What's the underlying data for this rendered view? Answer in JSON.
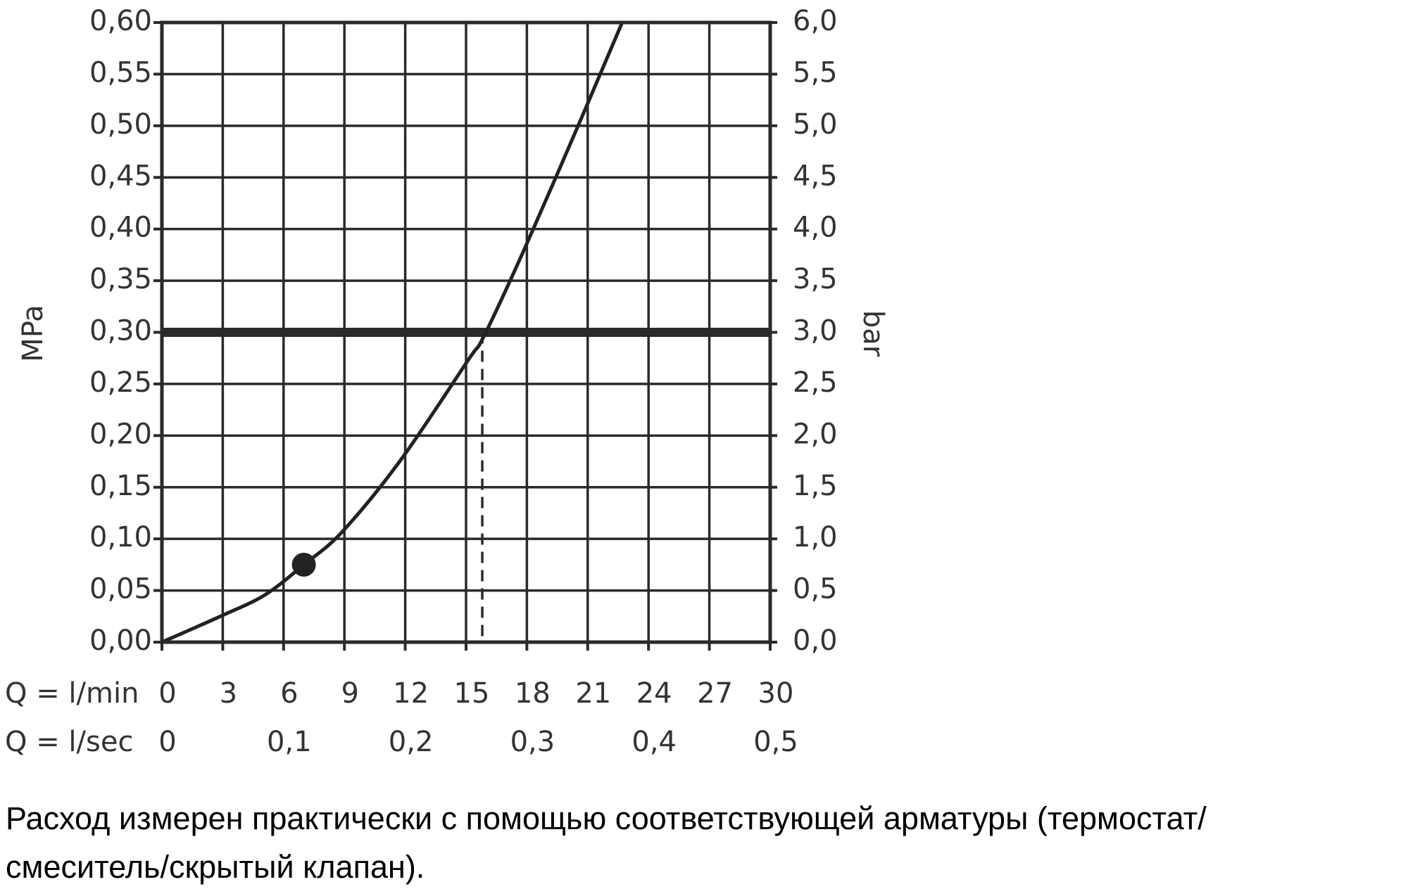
{
  "chart_data": {
    "type": "line",
    "color": "#222222",
    "x": [
      0,
      3,
      5.1,
      7,
      8.9,
      11.8,
      15.1,
      15.9,
      18,
      20.9,
      22.7
    ],
    "values": [
      0,
      0.026,
      0.046,
      0.075,
      0.107,
      0.177,
      0.273,
      0.297,
      0.386,
      0.517,
      0.6
    ],
    "highlight": {
      "x": 7,
      "y": 0.075
    },
    "reference_y": 0.3,
    "reference_x": 15.8,
    "ylabel": "MPa",
    "y2label": "bar",
    "xlabel": "Q = l/min",
    "x2label": "Q = l/sec",
    "xlim": [
      0,
      30
    ],
    "xticks": [
      0,
      3,
      6,
      9,
      12,
      15,
      18,
      21,
      24,
      27,
      30
    ],
    "x2lim": [
      0,
      0.5
    ],
    "x2ticks": [
      0,
      {
        "value": 0.1,
        "label": "0,1"
      },
      {
        "value": 0.2,
        "label": "0,2"
      },
      {
        "value": 0.3,
        "label": "0,3"
      },
      {
        "value": 0.4,
        "label": "0,4"
      },
      {
        "value": 0.5,
        "label": "0,5"
      }
    ],
    "ylim": [
      0,
      0.6
    ],
    "yticks": [
      {
        "value": 0,
        "label": "0,00"
      },
      {
        "value": 0.05,
        "label": "0,05"
      },
      {
        "value": 0.1,
        "label": "0,10"
      },
      {
        "value": 0.15,
        "label": "0,15"
      },
      {
        "value": 0.2,
        "label": "0,20"
      },
      {
        "value": 0.25,
        "label": "0,25"
      },
      {
        "value": 0.3,
        "label": "0,30"
      },
      {
        "value": 0.35,
        "label": "0,35"
      },
      {
        "value": 0.4,
        "label": "0,40"
      },
      {
        "value": 0.45,
        "label": "0,45"
      },
      {
        "value": 0.5,
        "label": "0,50"
      },
      {
        "value": 0.55,
        "label": "0,55"
      },
      {
        "value": 0.6,
        "label": "0,60"
      }
    ],
    "y2lim": [
      0,
      6
    ],
    "y2ticks": [
      {
        "value": 0,
        "label": "0,0"
      },
      {
        "value": 0.5,
        "label": "0,5"
      },
      {
        "value": 1,
        "label": "1,0"
      },
      {
        "value": 1.5,
        "label": "1,5"
      },
      {
        "value": 2,
        "label": "2,0"
      },
      {
        "value": 2.5,
        "label": "2,5"
      },
      {
        "value": 3,
        "label": "3,0"
      },
      {
        "value": 3.5,
        "label": "3,5"
      },
      {
        "value": 4,
        "label": "4,0"
      },
      {
        "value": 4.5,
        "label": "4,5"
      },
      {
        "value": 5,
        "label": "5,0"
      },
      {
        "value": 5.5,
        "label": "5,5"
      },
      {
        "value": 6,
        "label": "6,0"
      }
    ],
    "grid": true,
    "note": [
      "Расход измерен практически с помощью соответствующей арматуры (термостат/",
      "смеситель/скрытый клапан)."
    ]
  }
}
